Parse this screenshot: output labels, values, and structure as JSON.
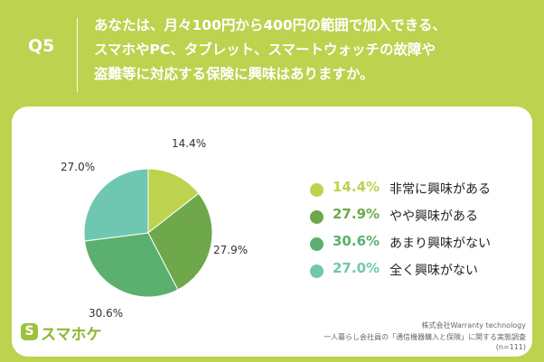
{
  "header": {
    "question_number": "Q5",
    "question_lines": [
      "あなたは、月々100円から400円の範囲で加入できる、",
      "スマホやPC、タブレット、スマートウォッチの故障や",
      "盗難等に対応する保険に興味はありますか。"
    ]
  },
  "chart_data": {
    "type": "pie",
    "unit": "%",
    "slices": [
      {
        "label": "非常に興味がある",
        "value": 14.4,
        "value_label": "14.4%",
        "color": "#bdd24f"
      },
      {
        "label": "やや興味がある",
        "value": 27.9,
        "value_label": "27.9%",
        "color": "#6fa84a"
      },
      {
        "label": "あまり興味がない",
        "value": 30.6,
        "value_label": "30.6%",
        "color": "#5bb06f"
      },
      {
        "label": "全く興味がない",
        "value": 27.0,
        "value_label": "27.0%",
        "color": "#6fc7b1"
      }
    ],
    "legend_position": "right"
  },
  "logo": {
    "mark": "S",
    "text": "スマホケ"
  },
  "source": {
    "line1": "株式会社Warranty technology",
    "line2": "一人暮らし会社員の「通信機器購入と保険」に関する実態調査",
    "line3": "(n=111)"
  }
}
